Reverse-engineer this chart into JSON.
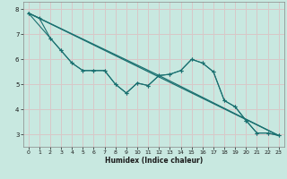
{
  "xlabel": "Humidex (Indice chaleur)",
  "bg_color": "#c8e8e0",
  "grid_color": "#d8c8c8",
  "line_color": "#1a7070",
  "xlim": [
    -0.5,
    23.5
  ],
  "ylim": [
    2.5,
    8.3
  ],
  "xticks": [
    0,
    1,
    2,
    3,
    4,
    5,
    6,
    7,
    8,
    9,
    10,
    11,
    12,
    13,
    14,
    15,
    16,
    17,
    18,
    19,
    20,
    21,
    22,
    23
  ],
  "yticks": [
    3,
    4,
    5,
    6,
    7,
    8
  ],
  "line1_x": [
    0,
    1,
    2,
    3,
    4,
    5,
    6,
    7,
    8,
    9,
    10,
    11,
    12,
    13,
    14,
    15,
    16,
    17,
    18,
    19,
    20,
    21,
    22,
    23
  ],
  "line1_y": [
    7.85,
    7.65,
    6.85,
    6.35,
    5.85,
    5.55,
    5.55,
    5.55,
    5.0,
    4.65,
    5.05,
    4.95,
    5.35,
    5.4,
    5.55,
    6.0,
    5.85,
    5.5,
    4.35,
    4.1,
    3.55,
    3.05,
    3.05,
    2.95
  ],
  "line2_x": [
    0,
    2,
    3,
    4,
    5,
    6,
    7,
    8,
    9,
    10,
    11,
    12,
    13,
    14,
    15,
    16,
    17,
    18,
    19,
    20,
    21,
    22,
    23
  ],
  "line2_y": [
    7.85,
    6.85,
    6.35,
    5.85,
    5.55,
    5.55,
    5.55,
    5.0,
    4.65,
    5.05,
    4.95,
    5.35,
    5.4,
    5.55,
    6.0,
    5.85,
    5.5,
    4.35,
    4.1,
    3.55,
    3.05,
    3.05,
    2.95
  ],
  "line3_x": [
    0,
    23
  ],
  "line3_y": [
    7.85,
    2.95
  ],
  "line4_x": [
    0,
    12,
    23
  ],
  "line4_y": [
    7.85,
    5.35,
    2.95
  ]
}
